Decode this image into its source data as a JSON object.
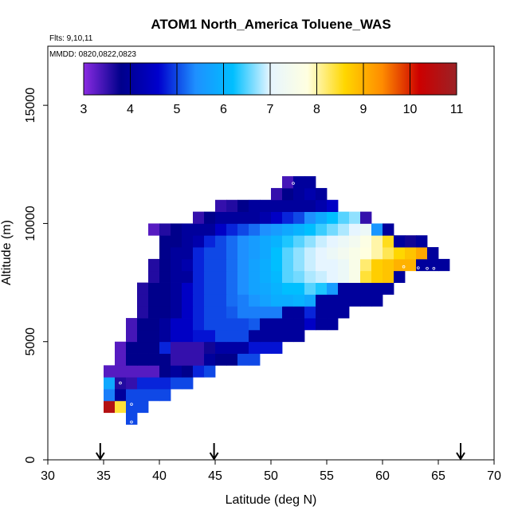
{
  "chart_data": {
    "type": "heatmap",
    "title": "ATOM1 North_America Toluene_WAS",
    "flights_text": "Flts: 9,10,11",
    "mmdd_text": "MMDD: 0820,0822,0823",
    "xlabel": "Latitude (deg N)",
    "ylabel": "Altitude (m)",
    "xlim": [
      30,
      70
    ],
    "ylim": [
      0,
      17500
    ],
    "xticks": [
      30,
      35,
      40,
      45,
      50,
      55,
      60,
      65,
      70
    ],
    "yticks": [
      0,
      5000,
      10000,
      15000
    ],
    "grid": false,
    "cell_width_deg": 1,
    "cell_height_m": 500,
    "colorbar": {
      "min": 3,
      "max": 11,
      "ticks": [
        3,
        4,
        5,
        6,
        7,
        8,
        9,
        10,
        11
      ],
      "stops": [
        "#8a2be2",
        "#00008b",
        "#0000cd",
        "#1e90ff",
        "#00bfff",
        "#e6f5ff",
        "#ffffe0",
        "#ffd700",
        "#ff8c00",
        "#cc0000",
        "#9b2226"
      ],
      "placement": "top-inside"
    },
    "arrows_latitude": [
      34.7,
      44.9,
      67.0
    ],
    "cells": [
      [
        35,
        2250,
        10.6
      ],
      [
        36,
        2250,
        8.4
      ],
      [
        37,
        2250,
        5.0
      ],
      [
        38,
        2250,
        5.0
      ],
      [
        35,
        2750,
        5.3
      ],
      [
        36,
        2750,
        4.0
      ],
      [
        37,
        2750,
        5.0
      ],
      [
        38,
        2750,
        5.0
      ],
      [
        39,
        2750,
        5.0
      ],
      [
        40,
        2750,
        5.0
      ],
      [
        37,
        1750,
        5.0
      ],
      [
        35,
        3250,
        5.8
      ],
      [
        36,
        3250,
        3.6
      ],
      [
        37,
        3250,
        3.5
      ],
      [
        38,
        3250,
        4.8
      ],
      [
        39,
        3250,
        4.8
      ],
      [
        40,
        3250,
        4.8
      ],
      [
        41,
        3250,
        5.0
      ],
      [
        42,
        3250,
        5.0
      ],
      [
        35,
        3750,
        3.3
      ],
      [
        36,
        3750,
        3.3
      ],
      [
        37,
        3750,
        3.3
      ],
      [
        38,
        3750,
        3.3
      ],
      [
        39,
        3750,
        3.3
      ],
      [
        40,
        3750,
        3.8
      ],
      [
        41,
        3750,
        4.0
      ],
      [
        42,
        3750,
        3.8
      ],
      [
        43,
        3750,
        4.8
      ],
      [
        44,
        3750,
        5.0
      ],
      [
        36,
        4250,
        3.3
      ],
      [
        37,
        4250,
        3.8
      ],
      [
        38,
        4250,
        3.8
      ],
      [
        39,
        4250,
        3.8
      ],
      [
        40,
        4250,
        3.8
      ],
      [
        41,
        4250,
        3.5
      ],
      [
        42,
        4250,
        3.5
      ],
      [
        43,
        4250,
        3.5
      ],
      [
        44,
        4250,
        4.0
      ],
      [
        45,
        4250,
        3.8
      ],
      [
        46,
        4250,
        3.8
      ],
      [
        47,
        4250,
        5.0
      ],
      [
        48,
        4250,
        5.0
      ],
      [
        36,
        4750,
        3.3
      ],
      [
        37,
        4750,
        3.8
      ],
      [
        38,
        4750,
        3.8
      ],
      [
        39,
        4750,
        3.8
      ],
      [
        40,
        4750,
        4.8
      ],
      [
        41,
        4750,
        3.5
      ],
      [
        42,
        4750,
        3.5
      ],
      [
        43,
        4750,
        3.5
      ],
      [
        44,
        4750,
        3.7
      ],
      [
        45,
        4750,
        4.1
      ],
      [
        46,
        4750,
        4.1
      ],
      [
        47,
        4750,
        4.1
      ],
      [
        48,
        4750,
        4.7
      ],
      [
        49,
        4750,
        4.7
      ],
      [
        50,
        4750,
        4.7
      ],
      [
        37,
        5250,
        3.4
      ],
      [
        38,
        5250,
        3.8
      ],
      [
        39,
        5250,
        3.8
      ],
      [
        40,
        5250,
        4.0
      ],
      [
        41,
        5250,
        4.5
      ],
      [
        42,
        5250,
        4.5
      ],
      [
        43,
        5250,
        4.7
      ],
      [
        44,
        5250,
        4.7
      ],
      [
        45,
        5250,
        5.0
      ],
      [
        46,
        5250,
        5.0
      ],
      [
        47,
        5250,
        5.0
      ],
      [
        48,
        5250,
        4.0
      ],
      [
        49,
        5250,
        4.0
      ],
      [
        50,
        5250,
        4.0
      ],
      [
        51,
        5250,
        4.0
      ],
      [
        52,
        5250,
        4.0
      ],
      [
        37,
        5750,
        3.4
      ],
      [
        38,
        5750,
        3.8
      ],
      [
        39,
        5750,
        3.8
      ],
      [
        40,
        5750,
        4.0
      ],
      [
        41,
        5750,
        4.5
      ],
      [
        42,
        5750,
        4.5
      ],
      [
        43,
        5750,
        4.8
      ],
      [
        44,
        5750,
        5.0
      ],
      [
        45,
        5750,
        5.0
      ],
      [
        46,
        5750,
        5.0
      ],
      [
        47,
        5750,
        5.0
      ],
      [
        48,
        5750,
        5.1
      ],
      [
        49,
        5750,
        4.0
      ],
      [
        50,
        5750,
        4.0
      ],
      [
        51,
        5750,
        4.0
      ],
      [
        52,
        5750,
        4.0
      ],
      [
        53,
        5750,
        4.5
      ],
      [
        54,
        5750,
        4.0
      ],
      [
        55,
        5750,
        4.0
      ],
      [
        38,
        6250,
        3.6
      ],
      [
        39,
        6250,
        3.8
      ],
      [
        40,
        6250,
        3.8
      ],
      [
        41,
        6250,
        4.0
      ],
      [
        42,
        6250,
        4.5
      ],
      [
        43,
        6250,
        4.8
      ],
      [
        44,
        6250,
        5.0
      ],
      [
        45,
        6250,
        5.0
      ],
      [
        46,
        6250,
        5.1
      ],
      [
        47,
        6250,
        5.3
      ],
      [
        48,
        6250,
        5.3
      ],
      [
        49,
        6250,
        5.3
      ],
      [
        50,
        6250,
        5.3
      ],
      [
        51,
        6250,
        4.0
      ],
      [
        52,
        6250,
        4.0
      ],
      [
        53,
        6250,
        4.8
      ],
      [
        54,
        6250,
        4.0
      ],
      [
        55,
        6250,
        4.0
      ],
      [
        56,
        6250,
        4.0
      ],
      [
        38,
        6750,
        3.6
      ],
      [
        39,
        6750,
        3.8
      ],
      [
        40,
        6750,
        3.8
      ],
      [
        41,
        6750,
        4.0
      ],
      [
        42,
        6750,
        4.5
      ],
      [
        43,
        6750,
        4.8
      ],
      [
        44,
        6750,
        5.0
      ],
      [
        45,
        6750,
        5.0
      ],
      [
        46,
        6750,
        5.2
      ],
      [
        47,
        6750,
        5.3
      ],
      [
        48,
        6750,
        5.5
      ],
      [
        49,
        6750,
        5.7
      ],
      [
        50,
        6750,
        5.9
      ],
      [
        51,
        6750,
        5.9
      ],
      [
        52,
        6750,
        6.0
      ],
      [
        53,
        6750,
        5.8
      ],
      [
        54,
        6750,
        4.0
      ],
      [
        55,
        6750,
        4.0
      ],
      [
        56,
        6750,
        4.0
      ],
      [
        57,
        6750,
        4.0
      ],
      [
        58,
        6750,
        4.0
      ],
      [
        59,
        6750,
        4.0
      ],
      [
        38,
        7250,
        3.6
      ],
      [
        39,
        7250,
        3.8
      ],
      [
        40,
        7250,
        3.8
      ],
      [
        41,
        7250,
        4.0
      ],
      [
        42,
        7250,
        4.5
      ],
      [
        43,
        7250,
        4.8
      ],
      [
        44,
        7250,
        5.0
      ],
      [
        45,
        7250,
        5.0
      ],
      [
        46,
        7250,
        5.2
      ],
      [
        47,
        7250,
        5.4
      ],
      [
        48,
        7250,
        5.7
      ],
      [
        49,
        7250,
        5.8
      ],
      [
        50,
        7250,
        6.0
      ],
      [
        51,
        7250,
        6.2
      ],
      [
        52,
        7250,
        6.2
      ],
      [
        53,
        7250,
        6.5
      ],
      [
        54,
        7250,
        6.3
      ],
      [
        55,
        7250,
        5.6
      ],
      [
        56,
        7250,
        4.0
      ],
      [
        57,
        7250,
        4.0
      ],
      [
        58,
        7250,
        4.0
      ],
      [
        59,
        7250,
        4.0
      ],
      [
        60,
        7250,
        4.0
      ],
      [
        39,
        7750,
        3.6
      ],
      [
        40,
        7750,
        3.8
      ],
      [
        41,
        7750,
        4.0
      ],
      [
        42,
        7750,
        4.0
      ],
      [
        43,
        7750,
        4.8
      ],
      [
        44,
        7750,
        5.0
      ],
      [
        45,
        7750,
        5.0
      ],
      [
        46,
        7750,
        5.2
      ],
      [
        47,
        7750,
        5.4
      ],
      [
        48,
        7750,
        5.7
      ],
      [
        49,
        7750,
        5.9
      ],
      [
        50,
        7750,
        6.1
      ],
      [
        51,
        7750,
        6.5
      ],
      [
        52,
        7750,
        6.6
      ],
      [
        53,
        7750,
        6.8
      ],
      [
        54,
        7750,
        6.9
      ],
      [
        55,
        7750,
        7.0
      ],
      [
        56,
        7750,
        7.2
      ],
      [
        57,
        7750,
        7.6
      ],
      [
        58,
        7750,
        8.4
      ],
      [
        59,
        7750,
        8.7
      ],
      [
        60,
        7750,
        8.8
      ],
      [
        61,
        7750,
        4.0
      ],
      [
        39,
        8250,
        3.6
      ],
      [
        40,
        8250,
        3.8
      ],
      [
        41,
        8250,
        4.0
      ],
      [
        42,
        8250,
        4.2
      ],
      [
        43,
        8250,
        4.8
      ],
      [
        44,
        8250,
        5.0
      ],
      [
        45,
        8250,
        5.0
      ],
      [
        46,
        8250,
        5.2
      ],
      [
        47,
        8250,
        5.4
      ],
      [
        48,
        8250,
        5.7
      ],
      [
        49,
        8250,
        5.9
      ],
      [
        50,
        8250,
        6.2
      ],
      [
        51,
        8250,
        6.5
      ],
      [
        52,
        8250,
        6.7
      ],
      [
        53,
        8250,
        6.9
      ],
      [
        54,
        8250,
        7.0
      ],
      [
        55,
        8250,
        7.0
      ],
      [
        56,
        8250,
        7.2
      ],
      [
        57,
        8250,
        7.6
      ],
      [
        58,
        8250,
        8.2
      ],
      [
        59,
        8250,
        8.7
      ],
      [
        60,
        8250,
        8.8
      ],
      [
        61,
        8250,
        9.0
      ],
      [
        62,
        8250,
        9.0
      ],
      [
        63,
        8250,
        4.0
      ],
      [
        64,
        8250,
        4.0
      ],
      [
        65,
        8250,
        4.0
      ],
      [
        40,
        8750,
        3.8
      ],
      [
        41,
        8750,
        4.0
      ],
      [
        42,
        8750,
        4.0
      ],
      [
        43,
        8750,
        4.8
      ],
      [
        44,
        8750,
        5.0
      ],
      [
        45,
        8750,
        5.0
      ],
      [
        46,
        8750,
        5.2
      ],
      [
        47,
        8750,
        5.4
      ],
      [
        48,
        8750,
        5.6
      ],
      [
        49,
        8750,
        5.8
      ],
      [
        50,
        8750,
        6.2
      ],
      [
        51,
        8750,
        6.5
      ],
      [
        52,
        8750,
        6.7
      ],
      [
        53,
        8750,
        6.9
      ],
      [
        54,
        8750,
        7.0
      ],
      [
        55,
        8750,
        7.2
      ],
      [
        56,
        8750,
        7.4
      ],
      [
        57,
        8750,
        7.6
      ],
      [
        58,
        8750,
        7.8
      ],
      [
        59,
        8750,
        8.0
      ],
      [
        60,
        8750,
        8.3
      ],
      [
        61,
        8750,
        8.6
      ],
      [
        62,
        8750,
        8.8
      ],
      [
        63,
        8750,
        9.1
      ],
      [
        64,
        8750,
        4.0
      ],
      [
        40,
        9250,
        3.8
      ],
      [
        41,
        9250,
        3.8
      ],
      [
        42,
        9250,
        4.0
      ],
      [
        43,
        9250,
        4.2
      ],
      [
        44,
        9250,
        4.8
      ],
      [
        45,
        9250,
        5.0
      ],
      [
        46,
        9250,
        5.2
      ],
      [
        47,
        9250,
        5.4
      ],
      [
        48,
        9250,
        5.6
      ],
      [
        49,
        9250,
        5.8
      ],
      [
        50,
        9250,
        6.0
      ],
      [
        51,
        9250,
        6.3
      ],
      [
        52,
        9250,
        6.5
      ],
      [
        53,
        9250,
        6.7
      ],
      [
        54,
        9250,
        6.9
      ],
      [
        55,
        9250,
        7.0
      ],
      [
        56,
        9250,
        7.2
      ],
      [
        57,
        9250,
        7.4
      ],
      [
        58,
        9250,
        7.7
      ],
      [
        59,
        9250,
        8.0
      ],
      [
        60,
        9250,
        8.5
      ],
      [
        61,
        9250,
        4.0
      ],
      [
        62,
        9250,
        3.7
      ],
      [
        63,
        9250,
        4.0
      ],
      [
        39,
        9750,
        3.3
      ],
      [
        40,
        9750,
        3.6
      ],
      [
        41,
        9750,
        3.8
      ],
      [
        42,
        9750,
        4.0
      ],
      [
        43,
        9750,
        4.0
      ],
      [
        44,
        9750,
        4.0
      ],
      [
        45,
        9750,
        4.5
      ],
      [
        46,
        9750,
        4.8
      ],
      [
        47,
        9750,
        5.0
      ],
      [
        48,
        9750,
        5.2
      ],
      [
        49,
        9750,
        5.4
      ],
      [
        50,
        9750,
        5.6
      ],
      [
        51,
        9750,
        5.8
      ],
      [
        52,
        9750,
        6.0
      ],
      [
        53,
        9750,
        6.2
      ],
      [
        54,
        9750,
        6.4
      ],
      [
        55,
        9750,
        6.6
      ],
      [
        56,
        9750,
        6.8
      ],
      [
        57,
        9750,
        7.0
      ],
      [
        58,
        9750,
        7.2
      ],
      [
        59,
        9750,
        5.5
      ],
      [
        60,
        9750,
        4.0
      ],
      [
        43,
        10250,
        3.5
      ],
      [
        44,
        10250,
        3.8
      ],
      [
        45,
        10250,
        4.0
      ],
      [
        46,
        10250,
        4.0
      ],
      [
        47,
        10250,
        4.0
      ],
      [
        48,
        10250,
        4.0
      ],
      [
        49,
        10250,
        4.2
      ],
      [
        50,
        10250,
        4.5
      ],
      [
        51,
        10250,
        4.8
      ],
      [
        52,
        10250,
        5.0
      ],
      [
        53,
        10250,
        5.4
      ],
      [
        54,
        10250,
        5.8
      ],
      [
        55,
        10250,
        6.2
      ],
      [
        56,
        10250,
        6.5
      ],
      [
        57,
        10250,
        6.7
      ],
      [
        58,
        10250,
        3.5
      ],
      [
        45,
        10750,
        3.5
      ],
      [
        46,
        10750,
        3.6
      ],
      [
        47,
        10750,
        3.8
      ],
      [
        48,
        10750,
        4.0
      ],
      [
        49,
        10750,
        4.0
      ],
      [
        50,
        10750,
        4.0
      ],
      [
        51,
        10750,
        4.0
      ],
      [
        52,
        10750,
        4.0
      ],
      [
        53,
        10750,
        4.0
      ],
      [
        54,
        10750,
        4.2
      ],
      [
        55,
        10750,
        4.5
      ],
      [
        50,
        11250,
        3.5
      ],
      [
        51,
        11250,
        3.8
      ],
      [
        52,
        11250,
        4.0
      ],
      [
        53,
        11250,
        4.2
      ],
      [
        54,
        11250,
        4.0
      ],
      [
        51,
        11750,
        3.4
      ],
      [
        52,
        11750,
        4.0
      ],
      [
        53,
        11750,
        4.0
      ]
    ],
    "markers": [
      [
        34.8,
        2200
      ],
      [
        34.8,
        2700
      ],
      [
        34.8,
        3350
      ],
      [
        34.8,
        3600
      ],
      [
        36.5,
        3250
      ],
      [
        37.5,
        2350
      ],
      [
        37.5,
        1600
      ],
      [
        38.7,
        9550
      ],
      [
        52.0,
        11700
      ],
      [
        61.9,
        8170
      ],
      [
        63.2,
        8120
      ],
      [
        64.0,
        8100
      ],
      [
        64.6,
        8100
      ]
    ]
  }
}
